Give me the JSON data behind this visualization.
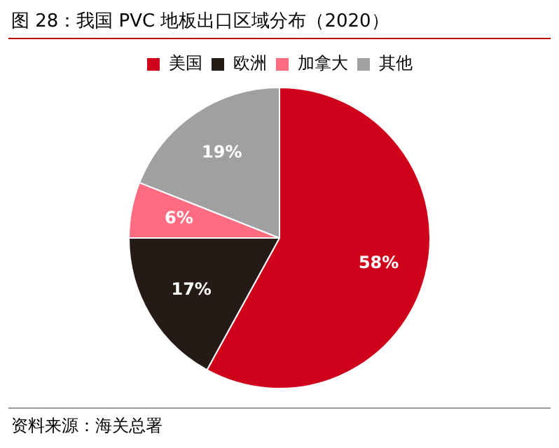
{
  "chart_data": {
    "type": "pie",
    "title": "图 28：我国 PVC 地板出口区域分布（2020）",
    "categories": [
      "美国",
      "欧洲",
      "加拿大",
      "其他"
    ],
    "values": [
      58,
      17,
      6,
      19
    ],
    "colors": [
      "#d0021b",
      "#261a17",
      "#ff6b81",
      "#a0a0a0"
    ],
    "value_labels": [
      "58%",
      "17%",
      "6%",
      "19%"
    ],
    "legend": "top",
    "annotations": [
      "资料来源：海关总署"
    ]
  }
}
